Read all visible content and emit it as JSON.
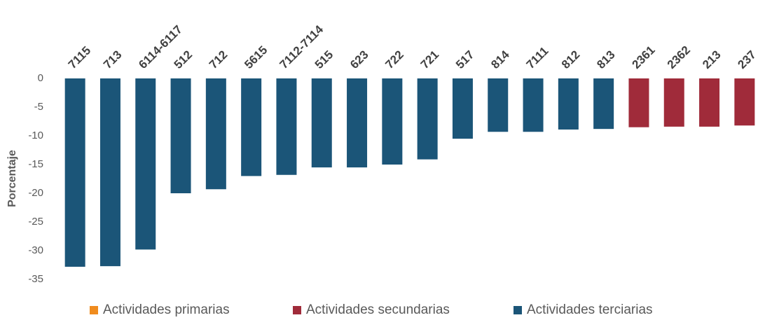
{
  "chart_data": {
    "type": "bar",
    "y_label": "Porcentaje",
    "categories": [
      "7115",
      "713",
      "6114-6117",
      "512",
      "712",
      "5615",
      "7112-7114",
      "515",
      "623",
      "722",
      "721",
      "517",
      "814",
      "7111",
      "812",
      "813",
      "2361",
      "2362",
      "213",
      "237"
    ],
    "series": [
      {
        "name": "Actividades primarias",
        "color": "#f08c1e",
        "values": [
          null,
          null,
          null,
          null,
          null,
          null,
          null,
          null,
          null,
          null,
          null,
          null,
          null,
          null,
          null,
          null,
          null,
          null,
          null,
          null
        ]
      },
      {
        "name": "Actividades secundarias",
        "color": "#a02b3a",
        "values": [
          null,
          null,
          null,
          null,
          null,
          null,
          null,
          null,
          null,
          null,
          null,
          null,
          null,
          null,
          null,
          null,
          -8.5,
          -8.4,
          -8.4,
          -8.2
        ]
      },
      {
        "name": "Actividades terciarias",
        "color": "#1b5578",
        "values": [
          -32.8,
          -32.7,
          -29.8,
          -20.0,
          -19.3,
          -17.0,
          -16.8,
          -15.5,
          -15.5,
          -15.0,
          -14.1,
          -10.5,
          -9.3,
          -9.3,
          -8.9,
          -8.8,
          null,
          null,
          null,
          null
        ]
      }
    ],
    "ylim": [
      -35,
      0
    ],
    "yticks": [
      0,
      -5,
      -10,
      -15,
      -20,
      -25,
      -30,
      -35
    ],
    "grid": false,
    "legend": "bottom"
  }
}
